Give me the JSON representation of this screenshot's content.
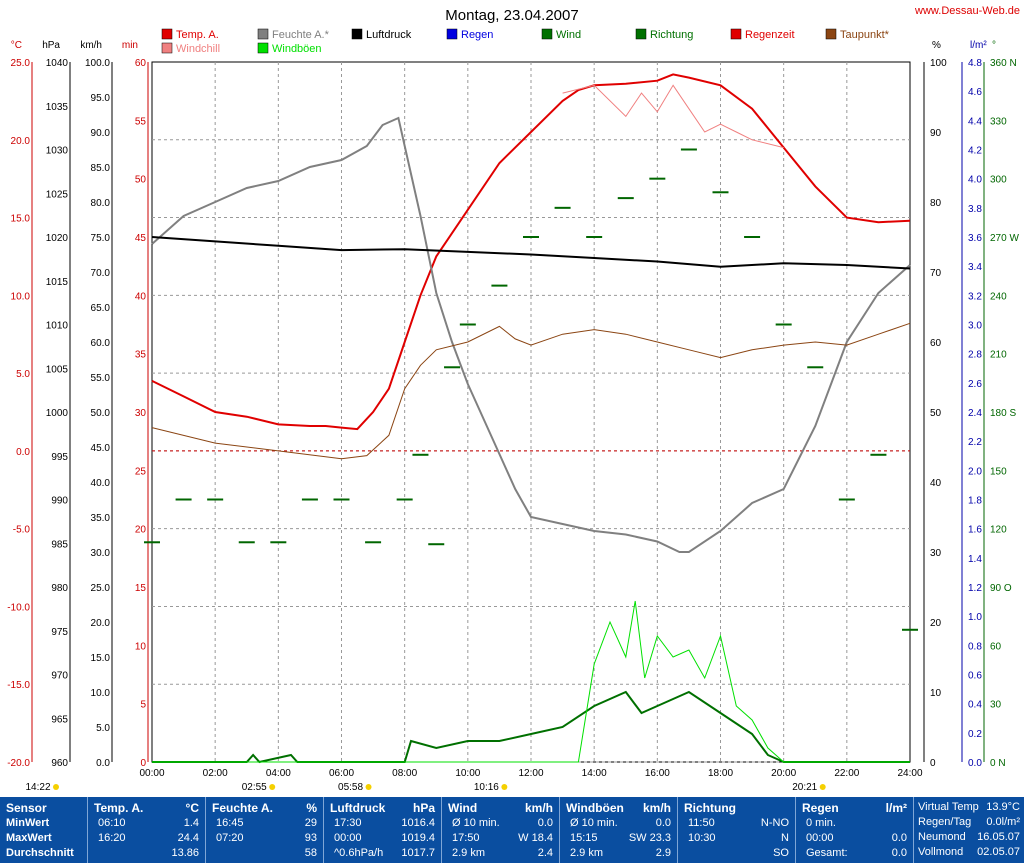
{
  "page": {
    "title": "Montag, 23.04.2007",
    "credit": "www.Dessau-Web.de"
  },
  "legend": [
    {
      "label": "Temp. A.",
      "color": "#e00000"
    },
    {
      "label": "Windchill",
      "color": "#f08080"
    },
    {
      "label": "Feuchte A.*",
      "color": "#808080"
    },
    {
      "label": "Windböen",
      "color": "#00e000"
    },
    {
      "label": "Luftdruck",
      "color": "#000000"
    },
    {
      "label": "Regen",
      "color": "#0000e0"
    },
    {
      "label": "Wind",
      "color": "#007000"
    },
    {
      "label": "Richtung",
      "color": "#007000"
    },
    {
      "label": "Regenzeit",
      "color": "#e00000"
    },
    {
      "label": "Taupunkt*",
      "color": "#8b4513"
    }
  ],
  "axes": {
    "temp": {
      "unit": "°C",
      "ticks": [
        "25.0",
        "20.0",
        "15.0",
        "10.0",
        "5.0",
        "0.0",
        "-5.0",
        "-10.0",
        "-15.0",
        "-20.0"
      ]
    },
    "pressure": {
      "unit": "hPa",
      "ticks": [
        "1040",
        "1035",
        "1030",
        "1025",
        "1020",
        "1015",
        "1010",
        "1005",
        "1000",
        "995",
        "990",
        "985",
        "980",
        "975",
        "970",
        "965",
        "960"
      ]
    },
    "wind": {
      "unit": "km/h",
      "ticks": [
        "100.0",
        "95.0",
        "90.0",
        "85.0",
        "80.0",
        "75.0",
        "70.0",
        "65.0",
        "60.0",
        "55.0",
        "50.0",
        "45.0",
        "40.0",
        "35.0",
        "30.0",
        "25.0",
        "20.0",
        "15.0",
        "10.0",
        "5.0",
        "0.0"
      ]
    },
    "minutes": {
      "unit": "min",
      "ticks": [
        "60",
        "55",
        "50",
        "45",
        "40",
        "35",
        "30",
        "25",
        "20",
        "15",
        "10",
        "5",
        "0"
      ]
    },
    "humidity": {
      "unit": "%",
      "ticks": [
        "100",
        "90",
        "80",
        "70",
        "60",
        "50",
        "40",
        "30",
        "20",
        "10",
        "0"
      ]
    },
    "rain": {
      "unit": "l/m²",
      "ticks": [
        "4.8",
        "4.6",
        "4.4",
        "4.2",
        "4.0",
        "3.8",
        "3.6",
        "3.4",
        "3.2",
        "3.0",
        "2.8",
        "2.6",
        "2.4",
        "2.2",
        "2.0",
        "1.8",
        "1.6",
        "1.4",
        "1.2",
        "1.0",
        "0.8",
        "0.6",
        "0.4",
        "0.2",
        "0.0"
      ]
    },
    "direction": {
      "unit": "°",
      "ticks": [
        "360 N",
        "330",
        "300",
        "270 W",
        "240",
        "210",
        "180 S",
        "150",
        "120",
        "90 O",
        "60",
        "30",
        "0 N"
      ]
    },
    "time": {
      "ticks": [
        "00:00",
        "02:00",
        "04:00",
        "06:00",
        "08:00",
        "10:00",
        "12:00",
        "14:00",
        "16:00",
        "18:00",
        "20:00",
        "22:00",
        "24:00"
      ]
    }
  },
  "sun_events": [
    {
      "label": "14:22",
      "hour": 0.0
    },
    {
      "label": "02:55",
      "hour": 2.92
    },
    {
      "label": "05:58",
      "hour": 5.97
    },
    {
      "label": "10:16",
      "hour": 10.27
    },
    {
      "label": "20:21",
      "hour": 20.35
    }
  ],
  "chart_data": {
    "type": "line",
    "title": "Montag, 23.04.2007",
    "x_unit": "hour",
    "xlim": [
      0,
      24
    ],
    "series": [
      {
        "name": "Temp. A.",
        "axis": "temp",
        "ylim": [
          -20,
          25
        ],
        "points": [
          [
            0,
            4.5
          ],
          [
            1,
            3.5
          ],
          [
            2,
            2.5
          ],
          [
            3,
            2.2
          ],
          [
            4,
            1.7
          ],
          [
            5,
            1.6
          ],
          [
            5.5,
            1.6
          ],
          [
            6,
            1.5
          ],
          [
            6.5,
            1.4
          ],
          [
            7,
            2.5
          ],
          [
            7.5,
            4
          ],
          [
            8,
            7
          ],
          [
            8.5,
            10
          ],
          [
            9,
            12.5
          ],
          [
            10,
            15.5
          ],
          [
            11,
            18.5
          ],
          [
            12,
            20.5
          ],
          [
            13,
            22.5
          ],
          [
            13.5,
            23.2
          ],
          [
            14,
            23.5
          ],
          [
            15,
            23.6
          ],
          [
            16,
            23.8
          ],
          [
            16.5,
            24.2
          ],
          [
            17,
            24
          ],
          [
            18,
            23.5
          ],
          [
            19,
            22
          ],
          [
            20,
            19.5
          ],
          [
            21,
            17
          ],
          [
            22,
            15
          ],
          [
            23,
            14.7
          ],
          [
            24,
            14.8
          ]
        ]
      },
      {
        "name": "Feuchte A.*",
        "axis": "humidity",
        "ylim": [
          0,
          100
        ],
        "points": [
          [
            0,
            74
          ],
          [
            1,
            78
          ],
          [
            2,
            80
          ],
          [
            3,
            82
          ],
          [
            4,
            83
          ],
          [
            5,
            85
          ],
          [
            6,
            86
          ],
          [
            6.8,
            88
          ],
          [
            7.3,
            91
          ],
          [
            7.8,
            92
          ],
          [
            8,
            88
          ],
          [
            8.5,
            78
          ],
          [
            9,
            67
          ],
          [
            9.5,
            60
          ],
          [
            10,
            54
          ],
          [
            10.5,
            49
          ],
          [
            11,
            44
          ],
          [
            11.5,
            39
          ],
          [
            12,
            35
          ],
          [
            13,
            34
          ],
          [
            14,
            33
          ],
          [
            15,
            32.5
          ],
          [
            16,
            31.5
          ],
          [
            16.7,
            30
          ],
          [
            17,
            30
          ],
          [
            18,
            33
          ],
          [
            19,
            37
          ],
          [
            20,
            39
          ],
          [
            21,
            48
          ],
          [
            22,
            60
          ],
          [
            23,
            67
          ],
          [
            24,
            71
          ]
        ]
      },
      {
        "name": "Luftdruck",
        "axis": "pressure",
        "ylim": [
          960,
          1040
        ],
        "points": [
          [
            0,
            1020
          ],
          [
            2,
            1019.5
          ],
          [
            4,
            1019
          ],
          [
            6,
            1018.5
          ],
          [
            8,
            1018.6
          ],
          [
            10,
            1018.3
          ],
          [
            12,
            1018
          ],
          [
            14,
            1017.6
          ],
          [
            16,
            1017.2
          ],
          [
            18,
            1016.6
          ],
          [
            20,
            1017
          ],
          [
            22,
            1016.8
          ],
          [
            24,
            1016.4
          ]
        ]
      },
      {
        "name": "Taupunkt*",
        "axis": "temp",
        "ylim": [
          -20,
          25
        ],
        "points": [
          [
            0,
            1.5
          ],
          [
            2,
            0.5
          ],
          [
            4,
            0
          ],
          [
            6,
            -0.5
          ],
          [
            6.8,
            -0.3
          ],
          [
            7.5,
            1
          ],
          [
            8,
            4
          ],
          [
            8.5,
            5.5
          ],
          [
            9,
            6.5
          ],
          [
            10,
            7
          ],
          [
            11,
            8
          ],
          [
            11.5,
            7.2
          ],
          [
            12,
            6.8
          ],
          [
            13,
            7.5
          ],
          [
            14,
            7.8
          ],
          [
            15,
            7.5
          ],
          [
            16,
            7
          ],
          [
            17,
            6.5
          ],
          [
            18,
            6
          ],
          [
            19,
            6.5
          ],
          [
            20,
            6.8
          ],
          [
            21,
            7
          ],
          [
            22,
            6.8
          ],
          [
            23,
            7.5
          ],
          [
            24,
            8.2
          ]
        ]
      },
      {
        "name": "Wind",
        "axis": "wind",
        "ylim": [
          0,
          100
        ],
        "points": [
          [
            0,
            0
          ],
          [
            3,
            0
          ],
          [
            3.2,
            1
          ],
          [
            3.4,
            0
          ],
          [
            4.4,
            1
          ],
          [
            4.6,
            0
          ],
          [
            8,
            0
          ],
          [
            8.2,
            3
          ],
          [
            9,
            2
          ],
          [
            10,
            3
          ],
          [
            11,
            3
          ],
          [
            12,
            4
          ],
          [
            13,
            5
          ],
          [
            14,
            8
          ],
          [
            15,
            10
          ],
          [
            15.5,
            7
          ],
          [
            16,
            8
          ],
          [
            17,
            10
          ],
          [
            18,
            7
          ],
          [
            19,
            4
          ],
          [
            19.5,
            1
          ],
          [
            20,
            0
          ],
          [
            24,
            0
          ]
        ]
      },
      {
        "name": "Windböen",
        "axis": "wind",
        "ylim": [
          0,
          100
        ],
        "points": [
          [
            0,
            0
          ],
          [
            13.5,
            0
          ],
          [
            14,
            14
          ],
          [
            14.5,
            20
          ],
          [
            15,
            15
          ],
          [
            15.3,
            23
          ],
          [
            15.6,
            12
          ],
          [
            16,
            18
          ],
          [
            16.5,
            15
          ],
          [
            17,
            16
          ],
          [
            17.5,
            12
          ],
          [
            18,
            18
          ],
          [
            18.5,
            8
          ],
          [
            19,
            6
          ],
          [
            19.5,
            2
          ],
          [
            20,
            0
          ],
          [
            24,
            0
          ]
        ]
      },
      {
        "name": "Windchill",
        "axis": "temp",
        "ylim": [
          -20,
          25
        ],
        "points": [
          [
            13,
            23
          ],
          [
            14,
            23.5
          ],
          [
            15,
            21.5
          ],
          [
            15.5,
            23
          ],
          [
            16,
            21.8
          ],
          [
            16.5,
            23.5
          ],
          [
            17,
            22
          ],
          [
            17.5,
            20.5
          ],
          [
            18,
            21
          ],
          [
            18.5,
            20.5
          ],
          [
            19,
            20
          ],
          [
            20,
            19.5
          ]
        ]
      },
      {
        "name": "Richtung",
        "axis": "direction",
        "ylim": [
          0,
          360
        ],
        "points": [
          [
            0,
            113
          ],
          [
            1,
            135
          ],
          [
            2,
            135
          ],
          [
            3,
            113
          ],
          [
            4,
            113
          ],
          [
            5,
            135
          ],
          [
            6,
            135
          ],
          [
            7,
            113
          ],
          [
            8,
            135
          ],
          [
            9,
            112
          ],
          [
            8.5,
            158
          ],
          [
            9.5,
            203
          ],
          [
            10,
            225
          ],
          [
            11,
            245
          ],
          [
            12,
            270
          ],
          [
            13,
            285
          ],
          [
            14,
            270
          ],
          [
            15,
            290
          ],
          [
            16,
            300
          ],
          [
            17,
            315
          ],
          [
            18,
            293
          ],
          [
            19,
            270
          ],
          [
            20,
            225
          ],
          [
            21,
            203
          ],
          [
            22,
            135
          ],
          [
            23,
            158
          ],
          [
            24,
            68
          ]
        ]
      }
    ]
  },
  "table": {
    "sensor": {
      "header": "Sensor",
      "rows": [
        "MinWert",
        "MaxWert",
        "Durchschnitt"
      ]
    },
    "temp": {
      "header": "Temp. A.",
      "unit": "°C",
      "rows": [
        [
          "06:10",
          "1.4"
        ],
        [
          "16:20",
          "24.4"
        ],
        [
          "",
          "13.86"
        ]
      ]
    },
    "humidity": {
      "header": "Feuchte A.",
      "unit": "%",
      "rows": [
        [
          "16:45",
          "29"
        ],
        [
          "07:20",
          "93"
        ],
        [
          "",
          "58"
        ]
      ]
    },
    "pressure": {
      "header": "Luftdruck",
      "unit": "hPa",
      "rows": [
        [
          "17:30",
          "1016.4"
        ],
        [
          "00:00",
          "1019.4"
        ],
        [
          "^0.6hPa/h",
          "1017.7"
        ]
      ]
    },
    "wind": {
      "header": "Wind",
      "unit": "km/h",
      "rows": [
        [
          "Ø 10 min.",
          "0.0"
        ],
        [
          "17:50",
          "W 18.4"
        ],
        [
          "2.9 km",
          "2.4"
        ]
      ]
    },
    "gusts": {
      "header": "Windböen",
      "unit": "km/h",
      "rows": [
        [
          "Ø 10 min.",
          "0.0"
        ],
        [
          "15:15",
          "SW 23.3"
        ],
        [
          "2.9 km",
          "2.9"
        ]
      ]
    },
    "direction": {
      "header": "Richtung",
      "unit": "",
      "rows": [
        [
          "11:50",
          "N-NO"
        ],
        [
          "10:30",
          "N"
        ],
        [
          "",
          "SO"
        ]
      ]
    },
    "rain": {
      "header": "Regen",
      "unit": "l/m²",
      "rows": [
        [
          "0 min.",
          ""
        ],
        [
          "00:00",
          "0.0"
        ],
        [
          "Gesamt:",
          "0.0"
        ]
      ]
    },
    "virtual": {
      "rows": [
        [
          "Virtual Temp",
          "13.9°C"
        ],
        [
          "Regen/Tag",
          "0.0l/m²"
        ],
        [
          "Neumond",
          "16.05.07"
        ],
        [
          "Vollmond",
          "02.05.07"
        ]
      ]
    }
  }
}
